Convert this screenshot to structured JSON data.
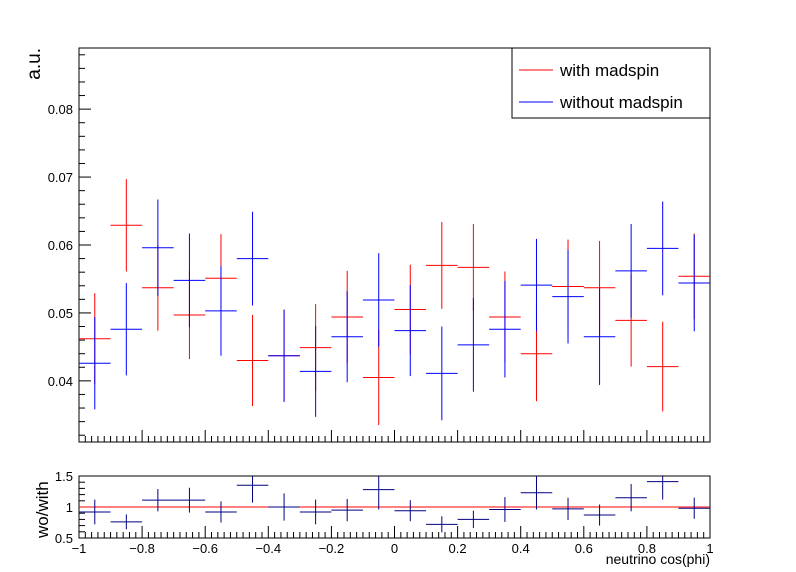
{
  "chart_data": [
    {
      "type": "errorbar",
      "panel": "main",
      "title": "",
      "xlabel": "",
      "ylabel": "a.u.",
      "xlim": [
        -1,
        1
      ],
      "ylim": [
        0.031,
        0.089
      ],
      "yticks": [
        0.04,
        0.05,
        0.06,
        0.07,
        0.08
      ],
      "ytick_labels": [
        "0.04",
        "0.05",
        "0.06",
        "0.07",
        "0.08"
      ],
      "grid": false,
      "legend_position": "top-right",
      "bin_width": 0.1,
      "x": [
        -0.95,
        -0.85,
        -0.75,
        -0.65,
        -0.55,
        -0.45,
        -0.35,
        -0.25,
        -0.15,
        -0.05,
        0.05,
        0.15,
        0.25,
        0.35,
        0.45,
        0.55,
        0.65,
        0.75,
        0.85,
        0.95
      ],
      "series": [
        {
          "name": "with madspin",
          "color": "#ff0000",
          "values": [
            0.0462,
            0.0629,
            0.0537,
            0.0497,
            0.0551,
            0.043,
            0.0437,
            0.0449,
            0.0494,
            0.0405,
            0.0505,
            0.057,
            0.0567,
            0.0494,
            0.044,
            0.0539,
            0.0537,
            0.0489,
            0.0421,
            0.0554
          ],
          "errors": [
            0.0067,
            0.0068,
            0.0063,
            0.0065,
            0.0065,
            0.0067,
            0.0067,
            0.0064,
            0.0068,
            0.007,
            0.0066,
            0.0064,
            0.0064,
            0.0067,
            0.007,
            0.0069,
            0.0069,
            0.0068,
            0.0066,
            0.0063
          ]
        },
        {
          "name": "without madspin",
          "color": "#0000ff",
          "values": [
            0.0426,
            0.0476,
            0.0596,
            0.0548,
            0.0503,
            0.058,
            0.0437,
            0.0414,
            0.0465,
            0.0519,
            0.0474,
            0.0411,
            0.0453,
            0.0476,
            0.0541,
            0.0524,
            0.0465,
            0.0562,
            0.0595,
            0.0544
          ],
          "errors": [
            0.0068,
            0.0068,
            0.0071,
            0.0069,
            0.0066,
            0.0069,
            0.0068,
            0.0067,
            0.0067,
            0.0069,
            0.0067,
            0.0069,
            0.0069,
            0.0071,
            0.0068,
            0.0069,
            0.0071,
            0.0069,
            0.0069,
            0.0071
          ]
        }
      ]
    },
    {
      "type": "errorbar",
      "panel": "ratio",
      "title": "",
      "xlabel": "neutrino cos(phi)",
      "ylabel": "wo/with",
      "xlim": [
        -1,
        1
      ],
      "ylim": [
        0.5,
        1.5
      ],
      "yticks": [
        0.5,
        1,
        1.5
      ],
      "ytick_labels": [
        "0.5",
        "1",
        "1.5"
      ],
      "xticks": [
        -1,
        -0.8,
        -0.6,
        -0.4,
        -0.2,
        0,
        0.2,
        0.4,
        0.6,
        0.8,
        1
      ],
      "xtick_labels": [
        "−1",
        "−0.8",
        "−0.6",
        "−0.4",
        "−0.2",
        "0",
        "0.2",
        "0.4",
        "0.6",
        "0.8",
        "1"
      ],
      "reference_line": {
        "y": 1,
        "color": "#ff0000"
      },
      "series": [
        {
          "name": "wo/with",
          "color": "#000080",
          "x": [
            -0.95,
            -0.85,
            -0.75,
            -0.65,
            -0.55,
            -0.45,
            -0.35,
            -0.25,
            -0.15,
            -0.05,
            0.05,
            0.15,
            0.25,
            0.35,
            0.45,
            0.55,
            0.65,
            0.75,
            0.85,
            0.95
          ],
          "values": [
            0.92,
            0.76,
            1.11,
            1.11,
            0.92,
            1.35,
            1.0,
            0.92,
            0.95,
            1.28,
            0.94,
            0.72,
            0.8,
            0.96,
            1.23,
            0.97,
            0.87,
            1.15,
            1.41,
            0.98
          ],
          "errors": [
            0.2,
            0.12,
            0.18,
            0.2,
            0.17,
            0.28,
            0.22,
            0.2,
            0.18,
            0.32,
            0.17,
            0.13,
            0.14,
            0.2,
            0.27,
            0.18,
            0.17,
            0.22,
            0.29,
            0.17
          ]
        }
      ]
    }
  ]
}
